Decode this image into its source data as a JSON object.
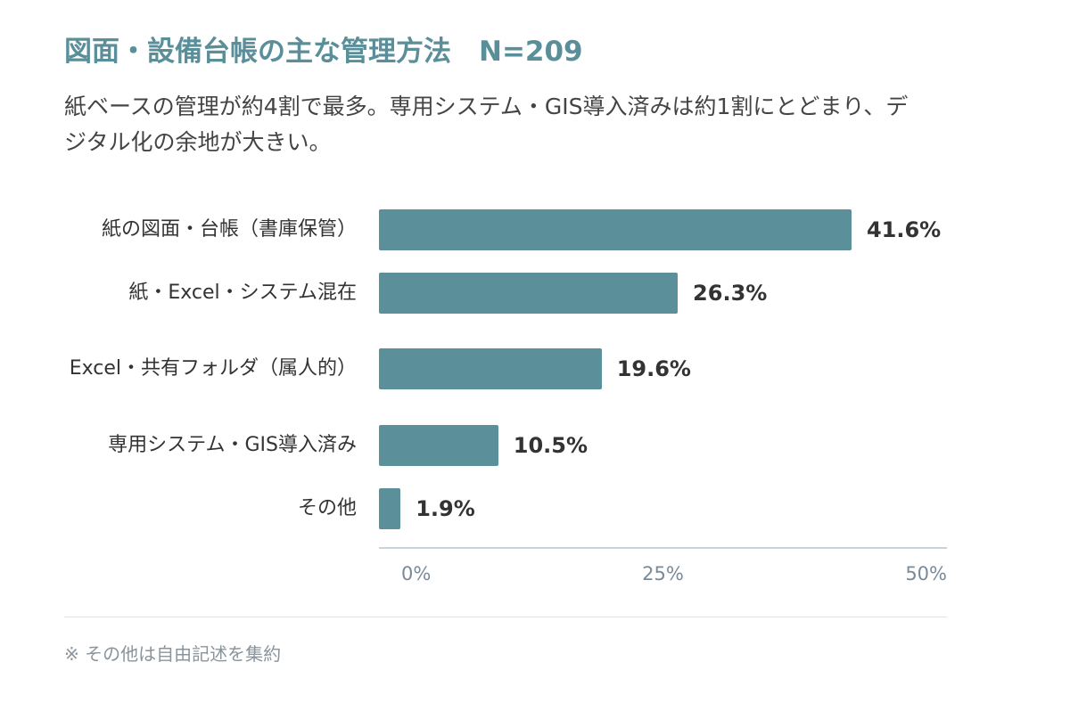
{
  "chart_data": {
    "type": "bar",
    "title": "図面・設備台帳の主な管理方法　N=209",
    "subtitle": "紙ベースの管理が約4割で最多。専用システム・GIS導入済みは約1割にとどまり、デジタル化の余地が大きい。",
    "note": "※ その他は自由記述を集約",
    "categories": [
      "紙の図面・台帳（書庫保管）",
      "紙・Excel・システム混在",
      "Excel・共有フォルダ（属人的）",
      "専用システム・GIS導入済み",
      "その他"
    ],
    "values": [
      41.6,
      26.3,
      19.6,
      10.5,
      1.9
    ],
    "value_labels": [
      "41.6%",
      "26.3%",
      "19.6%",
      "10.5%",
      "1.9%"
    ],
    "color": "#5b8f99",
    "xlim": [
      0,
      50
    ],
    "xticks": [
      {
        "value": 0,
        "label": "0%"
      },
      {
        "value": 25,
        "label": "25%"
      },
      {
        "value": 50,
        "label": "50%"
      }
    ]
  }
}
